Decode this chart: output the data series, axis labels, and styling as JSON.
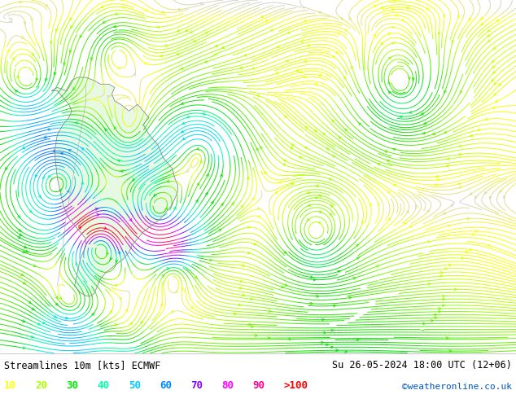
{
  "title_left": "Streamlines 10m [kts] ECMWF",
  "title_right": "Su 26-05-2024 18:00 UTC (12+06)",
  "credit": "©weatheronline.co.uk",
  "legend_values": [
    "10",
    "20",
    "30",
    "40",
    "50",
    "60",
    "70",
    "80",
    "90",
    ">100"
  ],
  "legend_colors": [
    "#ffff00",
    "#aaff00",
    "#00ee00",
    "#00ffaa",
    "#00ccff",
    "#0088ff",
    "#8800ff",
    "#ff00ff",
    "#ff0088",
    "#ff0000"
  ],
  "bg_color": "#ffffff",
  "map_bg": "#ffffff",
  "land_bg": "#e8ffe8",
  "figsize": [
    6.34,
    4.9
  ],
  "dpi": 100,
  "speed_thresholds": [
    0,
    10,
    20,
    30,
    40,
    50,
    60,
    70,
    80,
    90,
    100
  ],
  "speed_colors": [
    "#d0d0d0",
    "#ffff00",
    "#aaff00",
    "#55ee00",
    "#00dd00",
    "#00ffaa",
    "#00ccff",
    "#0077ff",
    "#8800ff",
    "#ff00ff",
    "#ff0000"
  ]
}
